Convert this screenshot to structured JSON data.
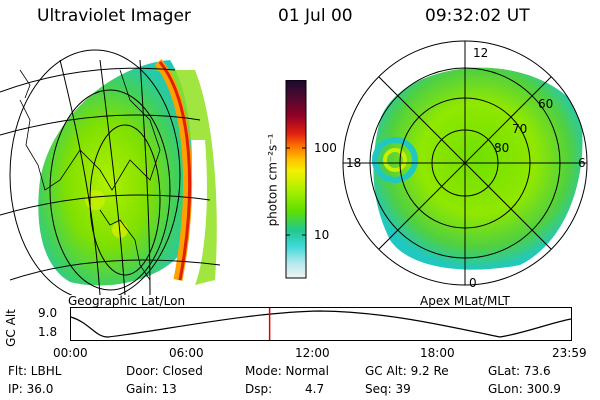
{
  "header": {
    "title": "Ultraviolet Imager",
    "date": "01 Jul 00",
    "time": "09:32:02 UT"
  },
  "left_panel": {
    "label": "Geographic Lat/Lon"
  },
  "right_panel": {
    "label": "Apex MLat/MLT",
    "mlt_labels": [
      "12",
      "18",
      "6",
      "0"
    ],
    "mlat_labels": [
      "60",
      "70",
      "80"
    ]
  },
  "colorbar": {
    "unit_label": "photon cm⁻²s⁻¹",
    "ticks": [
      "100",
      "10"
    ],
    "colors": [
      "#1a0a2e",
      "#4a0a30",
      "#7a0030",
      "#b00020",
      "#e02010",
      "#ff5a00",
      "#ff9800",
      "#ffc400",
      "#f4f000",
      "#b8f000",
      "#6ee000",
      "#2cd070",
      "#20c8c0",
      "#70e0e0",
      "#c8eef0",
      "#e8f4f4"
    ]
  },
  "timeline": {
    "axis_label": "GC Alt",
    "y_ticks": [
      "9.0",
      "1.8"
    ],
    "x_ticks": [
      "00:00",
      "06:00",
      "12:00",
      "18:00",
      "23:59"
    ],
    "current_time_hours": 9.534,
    "marker_color": "#e00000"
  },
  "info": {
    "row1": [
      "Flt: LBHL",
      "Door: Closed",
      "Mode: Normal",
      "GC Alt: 9.2 Re",
      "GLat:  73.6"
    ],
    "row2": [
      "IP: 36.0",
      "Gain: 13",
      "Dsp:",
      "4.7",
      "Seq: 39",
      "GLon: 300.9"
    ]
  },
  "colors": {
    "aurora_green": "#7ee000",
    "aurora_teal": "#20c8b0",
    "limb_red": "#d02000",
    "limb_orange": "#ff9a00"
  }
}
